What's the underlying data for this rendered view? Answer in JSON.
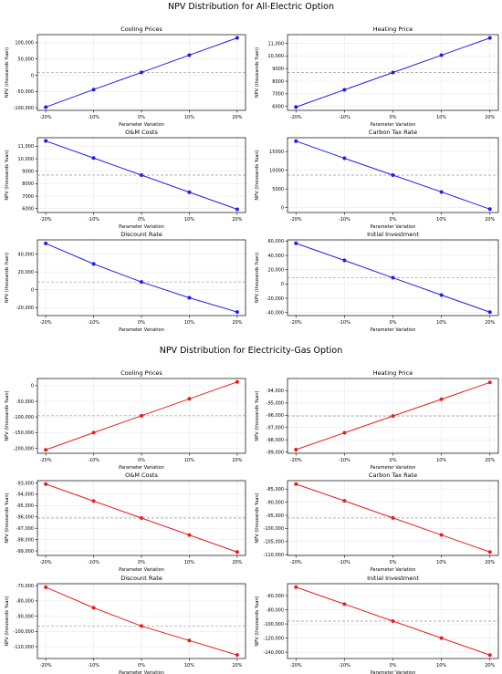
{
  "figure": {
    "sections": [
      {
        "title": "NPV Distribution for All-Electric Option"
      },
      {
        "title": "NPV Distribution for Electricity-Gas Option"
      }
    ]
  },
  "style": {
    "blue": "#1f1fe6",
    "red": "#e61f1f",
    "baseline": "#999999"
  },
  "chart_data": [
    {
      "type": "line",
      "title": "Cooling Prices",
      "xlabel": "Parameter Variation",
      "ylabel": "NPV (thousands Yuan)",
      "categories": [
        "-20%",
        "-10%",
        "0%",
        "10%",
        "20%"
      ],
      "values": [
        -98000,
        -44000,
        8700,
        62000,
        115000
      ],
      "baseline": 8700,
      "ylim": [
        -108000,
        125000
      ],
      "yticks": [
        -100000,
        -50000,
        0,
        50000,
        100000
      ],
      "yticklabels": [
        "-100,000",
        "-50,000",
        "0",
        "50,000",
        "100,000"
      ],
      "color": "blue",
      "grid": true
    },
    {
      "type": "line",
      "title": "Heating Price",
      "xlabel": "Parameter Variation",
      "ylabel": "NPV (thousands Yuan)",
      "categories": [
        "-20%",
        "-10%",
        "0%",
        "10%",
        "20%"
      ],
      "values": [
        5950,
        7320,
        8690,
        10060,
        11430
      ],
      "baseline": 8690,
      "ylim": [
        5690,
        11690
      ],
      "yticks": [
        6000,
        7000,
        8000,
        9000,
        10000,
        11000
      ],
      "yticklabels": [
        "6000",
        "7000",
        "8000",
        "9000",
        "10,000",
        "11,000"
      ],
      "color": "blue",
      "grid": true
    },
    {
      "type": "line",
      "title": "O&M Costs",
      "xlabel": "Parameter Variation",
      "ylabel": "NPV (thousands Yuan)",
      "categories": [
        "-20%",
        "-10%",
        "0%",
        "10%",
        "20%"
      ],
      "values": [
        11430,
        10060,
        8690,
        7320,
        5950
      ],
      "baseline": 8690,
      "ylim": [
        5690,
        11690
      ],
      "yticks": [
        6000,
        7000,
        8000,
        9000,
        10000,
        11000
      ],
      "yticklabels": [
        "6000",
        "7000",
        "8000",
        "9000",
        "10,000",
        "11,000"
      ],
      "color": "blue",
      "grid": true
    },
    {
      "type": "line",
      "title": "Carbon Tax Rate",
      "xlabel": "Parameter Variation",
      "ylabel": "NPV (thousands Yuan)",
      "categories": [
        "-20%",
        "-10%",
        "0%",
        "10%",
        "20%"
      ],
      "values": [
        17800,
        13200,
        8700,
        4200,
        -400
      ],
      "baseline": 8700,
      "ylim": [
        -1300,
        18700
      ],
      "yticks": [
        0,
        5000,
        10000,
        15000
      ],
      "yticklabels": [
        "0",
        "5000",
        "10000",
        "15000"
      ],
      "color": "blue",
      "grid": true
    },
    {
      "type": "line",
      "title": "Discount Rate",
      "xlabel": "Parameter Variation",
      "ylabel": "NPV (thousands Yuan)",
      "categories": [
        "-20%",
        "-10%",
        "0%",
        "10%",
        "20%"
      ],
      "values": [
        52000,
        29000,
        8700,
        -9000,
        -25000
      ],
      "baseline": 8700,
      "ylim": [
        -29000,
        56000
      ],
      "yticks": [
        -20000,
        0,
        20000,
        40000
      ],
      "yticklabels": [
        "-20,000",
        "0",
        "20,000",
        "40,000"
      ],
      "color": "blue",
      "grid": true
    },
    {
      "type": "line",
      "title": "Initial Investment",
      "xlabel": "Parameter Variation",
      "ylabel": "NPV (thousands Yuan)",
      "categories": [
        "-20%",
        "-10%",
        "0%",
        "10%",
        "20%"
      ],
      "values": [
        57000,
        33000,
        8700,
        -15500,
        -39500
      ],
      "baseline": 8700,
      "ylim": [
        -44300,
        61800
      ],
      "yticks": [
        -40000,
        -20000,
        0,
        20000,
        40000,
        60000
      ],
      "yticklabels": [
        "-40,000",
        "-20,000",
        "0",
        "20,000",
        "40,000",
        "60,000"
      ],
      "color": "blue",
      "grid": true
    },
    {
      "type": "line",
      "title": "Cooling Prices",
      "xlabel": "Parameter Variation",
      "ylabel": "NPV (thousands Yuan)",
      "categories": [
        "-20%",
        "-10%",
        "0%",
        "10%",
        "20%"
      ],
      "values": [
        -205000,
        -150000,
        -96000,
        -42000,
        12000
      ],
      "baseline": -96000,
      "ylim": [
        -216000,
        23000
      ],
      "yticks": [
        -200000,
        -150000,
        -100000,
        -50000,
        0
      ],
      "yticklabels": [
        "-200,000",
        "-150,000",
        "-100,000",
        "-50,000",
        "0"
      ],
      "color": "red",
      "grid": true
    },
    {
      "type": "line",
      "title": "Heating Price",
      "xlabel": "Parameter Variation",
      "ylabel": "NPV (thousands Yuan)",
      "categories": [
        "-20%",
        "-10%",
        "0%",
        "10%",
        "20%"
      ],
      "values": [
        -98800,
        -97430,
        -96060,
        -94690,
        -93320
      ],
      "baseline": -96060,
      "ylim": [
        -99100,
        -93000
      ],
      "yticks": [
        -99000,
        -98000,
        -97000,
        -96000,
        -95000,
        -94000
      ],
      "yticklabels": [
        "-99,000",
        "-98,000",
        "-97,000",
        "-96,000",
        "-95,000",
        "-94,000"
      ],
      "color": "red",
      "grid": true
    },
    {
      "type": "line",
      "title": "O&M Costs",
      "xlabel": "Parameter Variation",
      "ylabel": "NPV (thousands Yuan)",
      "categories": [
        "-20%",
        "-10%",
        "0%",
        "10%",
        "20%"
      ],
      "values": [
        -93100,
        -94600,
        -96100,
        -97600,
        -99100
      ],
      "baseline": -96100,
      "ylim": [
        -99400,
        -92800
      ],
      "yticks": [
        -99000,
        -98000,
        -97000,
        -96000,
        -95000,
        -94000,
        -93000
      ],
      "yticklabels": [
        "-99,000",
        "-98,000",
        "-97,000",
        "-96,000",
        "-95,000",
        "-94,000",
        "-93,000"
      ],
      "color": "red",
      "grid": true
    },
    {
      "type": "line",
      "title": "Carbon Tax Rate",
      "xlabel": "Parameter Variation",
      "ylabel": "NPV (thousands Yuan)",
      "categories": [
        "-20%",
        "-10%",
        "0%",
        "10%",
        "20%"
      ],
      "values": [
        -83100,
        -89500,
        -96000,
        -102500,
        -109000
      ],
      "baseline": -96000,
      "ylim": [
        -110300,
        -81800
      ],
      "yticks": [
        -110000,
        -105000,
        -100000,
        -95000,
        -90000,
        -85000
      ],
      "yticklabels": [
        "-110,000",
        "-105,000",
        "-100,000",
        "-95,000",
        "-90,000",
        "-85,000"
      ],
      "color": "red",
      "grid": true
    },
    {
      "type": "line",
      "title": "Discount Rate",
      "xlabel": "Parameter Variation",
      "ylabel": "NPV (thousands Yuan)",
      "categories": [
        "-20%",
        "-10%",
        "0%",
        "10%",
        "20%"
      ],
      "values": [
        -71000,
        -84500,
        -96500,
        -106000,
        -115500
      ],
      "baseline": -96500,
      "ylim": [
        -117800,
        -68700
      ],
      "yticks": [
        -110000,
        -100000,
        -90000,
        -80000,
        -70000
      ],
      "yticklabels": [
        "-110,000",
        "-100,000",
        "-90,000",
        "-80,000",
        "-70,000"
      ],
      "color": "red",
      "grid": true
    },
    {
      "type": "line",
      "title": "Initial Investment",
      "xlabel": "Parameter Variation",
      "ylabel": "NPV (thousands Yuan)",
      "categories": [
        "-20%",
        "-10%",
        "0%",
        "10%",
        "20%"
      ],
      "values": [
        -48000,
        -72000,
        -96000,
        -120000,
        -144000
      ],
      "baseline": -96000,
      "ylim": [
        -148800,
        -43200
      ],
      "yticks": [
        -140000,
        -120000,
        -100000,
        -80000,
        -60000
      ],
      "yticklabels": [
        "-140,000",
        "-120,000",
        "-100,000",
        "-80,000",
        "-60,000"
      ],
      "color": "red",
      "grid": true
    }
  ]
}
